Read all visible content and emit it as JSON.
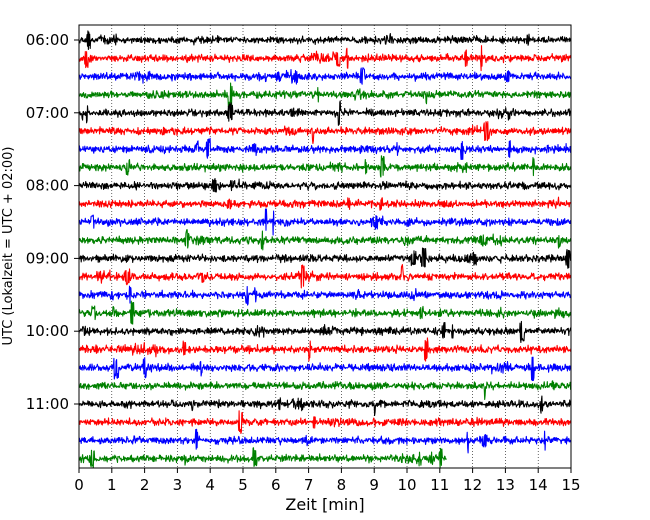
{
  "chart_data": {
    "type": "line",
    "title": "",
    "xlabel": "Zeit  [min]",
    "ylabel": "UTC (Lokalzeit = UTC + 02:00)",
    "xlim": [
      0,
      15
    ],
    "x_ticks": [
      "0",
      "1",
      "2",
      "3",
      "4",
      "5",
      "6",
      "7",
      "8",
      "9",
      "10",
      "11",
      "12",
      "13",
      "14",
      "15"
    ],
    "row_minutes": 15,
    "rows_count": 24,
    "last_row_end_min": 11.2,
    "y_tick_labels": [
      {
        "row": 0,
        "label": "06:00"
      },
      {
        "row": 4,
        "label": "07:00"
      },
      {
        "row": 8,
        "label": "08:00"
      },
      {
        "row": 12,
        "label": "09:00"
      },
      {
        "row": 16,
        "label": "10:00"
      },
      {
        "row": 20,
        "label": "11:00"
      }
    ],
    "row_colors": [
      "#000000",
      "#ff0000",
      "#0000ff",
      "#008000"
    ],
    "grid": "vertical dotted at each minute",
    "legend": "none"
  }
}
